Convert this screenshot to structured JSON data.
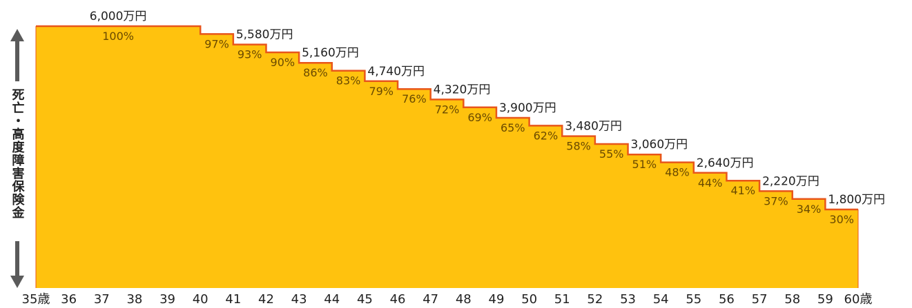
{
  "chart_data": {
    "type": "area",
    "step": true,
    "ylabel": "死亡・高度障害保険金",
    "start_age_label": "35歳",
    "end_age_label": "60歳",
    "tick_labels": [
      "35歳",
      "36",
      "37",
      "38",
      "39",
      "40",
      "41",
      "42",
      "43",
      "44",
      "45",
      "46",
      "47",
      "48",
      "49",
      "50",
      "51",
      "52",
      "53",
      "54",
      "55",
      "56",
      "57",
      "58",
      "59",
      "60歳"
    ],
    "ages": [
      35,
      36,
      37,
      38,
      39,
      40,
      41,
      42,
      43,
      44,
      45,
      46,
      47,
      48,
      49,
      50,
      51,
      52,
      53,
      54,
      55,
      56,
      57,
      58,
      59,
      60
    ],
    "segments": [
      {
        "from": 35,
        "to": 40,
        "percent": 100,
        "pct_label": "100%"
      },
      {
        "from": 40,
        "to": 41,
        "percent": 97,
        "pct_label": "97%"
      },
      {
        "from": 41,
        "to": 42,
        "percent": 93,
        "pct_label": "93%"
      },
      {
        "from": 42,
        "to": 43,
        "percent": 90,
        "pct_label": "90%"
      },
      {
        "from": 43,
        "to": 44,
        "percent": 86,
        "pct_label": "86%"
      },
      {
        "from": 44,
        "to": 45,
        "percent": 83,
        "pct_label": "83%"
      },
      {
        "from": 45,
        "to": 46,
        "percent": 79,
        "pct_label": "79%"
      },
      {
        "from": 46,
        "to": 47,
        "percent": 76,
        "pct_label": "76%"
      },
      {
        "from": 47,
        "to": 48,
        "percent": 72,
        "pct_label": "72%"
      },
      {
        "from": 48,
        "to": 49,
        "percent": 69,
        "pct_label": "69%"
      },
      {
        "from": 49,
        "to": 50,
        "percent": 65,
        "pct_label": "65%"
      },
      {
        "from": 50,
        "to": 51,
        "percent": 62,
        "pct_label": "62%"
      },
      {
        "from": 51,
        "to": 52,
        "percent": 58,
        "pct_label": "58%"
      },
      {
        "from": 52,
        "to": 53,
        "percent": 55,
        "pct_label": "55%"
      },
      {
        "from": 53,
        "to": 54,
        "percent": 51,
        "pct_label": "51%"
      },
      {
        "from": 54,
        "to": 55,
        "percent": 48,
        "pct_label": "48%"
      },
      {
        "from": 55,
        "to": 56,
        "percent": 44,
        "pct_label": "44%"
      },
      {
        "from": 56,
        "to": 57,
        "percent": 41,
        "pct_label": "41%"
      },
      {
        "from": 57,
        "to": 58,
        "percent": 37,
        "pct_label": "37%"
      },
      {
        "from": 58,
        "to": 59,
        "percent": 34,
        "pct_label": "34%"
      },
      {
        "from": 59,
        "to": 60,
        "percent": 30,
        "pct_label": "30%"
      }
    ],
    "amount_labels": [
      {
        "age": 37.5,
        "percent": 100,
        "label": "6,000万円"
      },
      {
        "age": 41,
        "percent": 93,
        "label": "5,580万円"
      },
      {
        "age": 43,
        "percent": 86,
        "label": "5,160万円"
      },
      {
        "age": 45,
        "percent": 79,
        "label": "4,740万円"
      },
      {
        "age": 47,
        "percent": 72,
        "label": "4,320万円"
      },
      {
        "age": 49,
        "percent": 65,
        "label": "3,900万円"
      },
      {
        "age": 51,
        "percent": 58,
        "label": "3,480万円"
      },
      {
        "age": 53,
        "percent": 51,
        "label": "3,060万円"
      },
      {
        "age": 55,
        "percent": 44,
        "label": "2,640万円"
      },
      {
        "age": 57,
        "percent": 37,
        "label": "2,220万円"
      },
      {
        "age": 59,
        "percent": 30,
        "label": "1,800万円"
      }
    ],
    "ylim": [
      0,
      100
    ],
    "xlim": [
      35,
      60
    ],
    "colors": {
      "fill": "#ffc20e",
      "edge": "#e8561a",
      "arrow": "#5a5a5a"
    }
  }
}
